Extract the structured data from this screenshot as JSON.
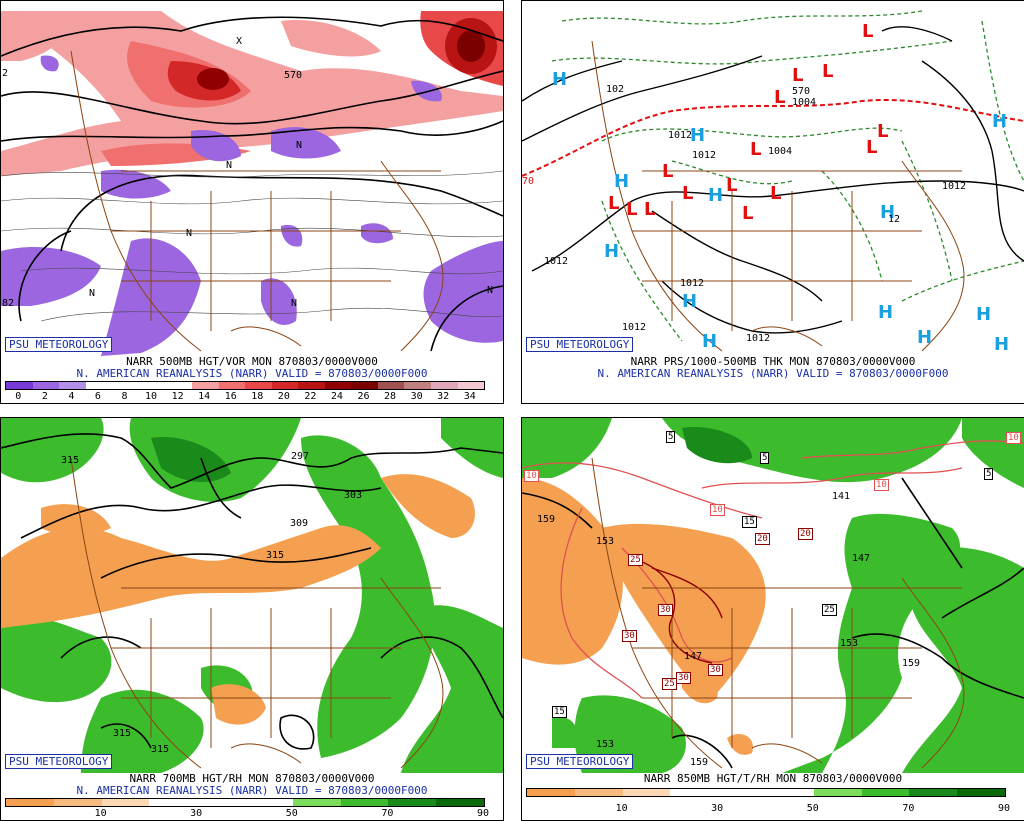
{
  "badge_text": "PSU METEOROLOGY",
  "panels": {
    "p1": {
      "caption_line1": "NARR 500MB HGT/VOR MON 870803/0000V000",
      "caption_line2": "N. AMERICAN REANALYSIS (NARR) VALID = 870803/0000F000",
      "colorbar_ticks": [
        "0",
        "2",
        "4",
        "6",
        "8",
        "10",
        "12",
        "14",
        "16",
        "18",
        "20",
        "22",
        "24",
        "26",
        "28",
        "30",
        "32",
        "34"
      ],
      "colorbar_colors": [
        "#7a3ad8",
        "#9b66e0",
        "#b58ee8",
        "#ffffff",
        "#ffffff",
        "#ffffff",
        "#ffffff",
        "#f4a0a0",
        "#f07070",
        "#e84848",
        "#d42828",
        "#b81414",
        "#900000",
        "#7a0000",
        "#a05050",
        "#c08080",
        "#e0a8b8",
        "#f4c8d0"
      ],
      "contour_labels": [
        "570",
        "2",
        "82"
      ],
      "vort_labels": [
        "N",
        "N",
        "N",
        "N",
        "N",
        "N",
        "X"
      ]
    },
    "p2": {
      "caption_line1": "NARR PRS/1000-500MB THK MON 870803/0000V000",
      "caption_line2": "N. AMERICAN REANALYSIS (NARR) VALID = 870803/0000F000",
      "contour_labels": [
        "1012",
        "1012",
        "1012",
        "1012",
        "1004",
        "1004",
        "1012",
        "1012",
        "1012",
        "102",
        "570",
        "70",
        "12"
      ],
      "high_symbol": "H",
      "low_symbol": "L"
    },
    "p3": {
      "caption_line1": "NARR 700MB HGT/RH MON 870803/0000V000",
      "caption_line2": "N. AMERICAN REANALYSIS (NARR) VALID = 870803/0000F000",
      "colorbar_ticks": [
        "10",
        "30",
        "50",
        "70",
        "90"
      ],
      "colorbar_colors": [
        "#f4a050",
        "#f7bb80",
        "#fcd9b4",
        "#ffffff",
        "#ffffff",
        "#ffffff",
        "#7cdc5c",
        "#3cbc2c",
        "#1a8a1a",
        "#0a6a0a"
      ],
      "contour_labels": [
        "315",
        "297",
        "303",
        "309",
        "315",
        "315",
        "315"
      ]
    },
    "p4": {
      "caption_line1": "NARR 850MB HGT/T/RH MON 870803/0000V000",
      "caption_line2": "N. AMERICAN REANALYSIS (NARR) VALID = 870803/0000F000",
      "colorbar_ticks": [
        "10",
        "30",
        "50",
        "70",
        "90"
      ],
      "colorbar_colors": [
        "#f4a050",
        "#f7bb80",
        "#fcd9b4",
        "#ffffff",
        "#ffffff",
        "#ffffff",
        "#7cdc5c",
        "#3cbc2c",
        "#1a8a1a",
        "#0a6a0a"
      ],
      "height_labels": [
        "159",
        "153",
        "147",
        "141",
        "147",
        "153",
        "159",
        "159",
        "153"
      ],
      "temp_labels": [
        "5",
        "5",
        "5",
        "10",
        "10",
        "10",
        "15",
        "15",
        "20",
        "20",
        "25",
        "25",
        "25",
        "30",
        "30",
        "30",
        "30",
        "10"
      ]
    }
  }
}
